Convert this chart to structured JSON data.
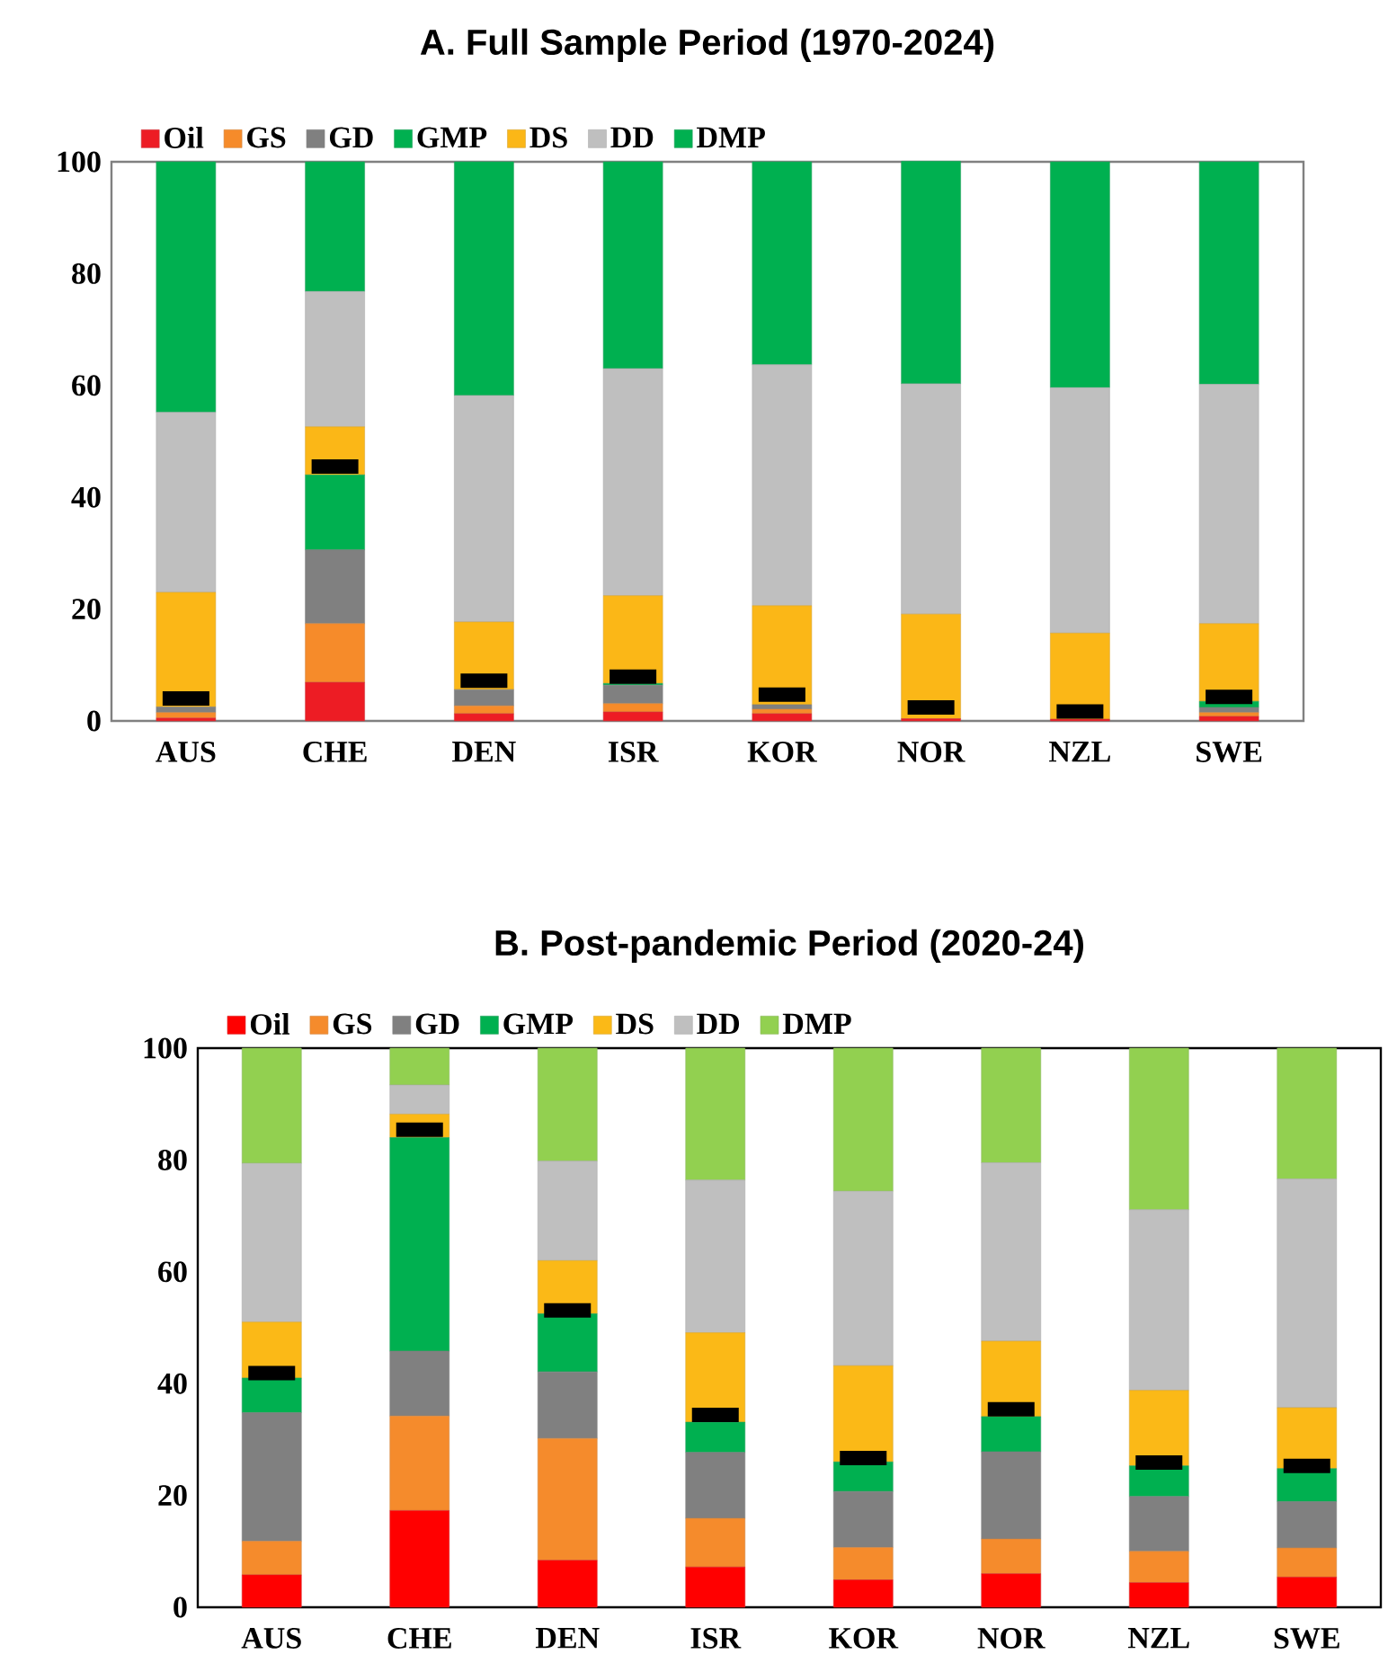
{
  "chart_data": [
    {
      "type": "bar",
      "stacked": true,
      "title": "A.  Full Sample Period (1970-2024)",
      "legend": "top left",
      "categories": [
        "AUS",
        "CHE",
        "DEN",
        "ISR",
        "KOR",
        "NOR",
        "NZL",
        "SWE"
      ],
      "ylim": [
        0,
        100
      ],
      "yticks": [
        0,
        20,
        40,
        60,
        80,
        100
      ],
      "series": [
        {
          "name": "Oil",
          "color": "#ed1c24",
          "values": [
            0.5,
            6.9,
            1.3,
            1.6,
            1.3,
            0.4,
            0.3,
            0.8
          ]
        },
        {
          "name": "GS",
          "color": "#f68b2a",
          "values": [
            1.0,
            10.5,
            1.4,
            1.5,
            0.8,
            null,
            null,
            0.7
          ]
        },
        {
          "name": "GD",
          "color": "#808080",
          "values": [
            1.0,
            13.2,
            2.9,
            3.3,
            0.8,
            null,
            null,
            0.9
          ]
        },
        {
          "name": "GMP",
          "color": "#00b050",
          "values": [
            null,
            13.4,
            null,
            0.3,
            null,
            null,
            null,
            1.1
          ]
        },
        {
          "name": "DS",
          "color": "#fbb717",
          "values": [
            20.5,
            8.6,
            12.1,
            15.7,
            17.7,
            18.7,
            15.4,
            13.9
          ]
        },
        {
          "name": "DD",
          "color": "#bfbfbf",
          "values": [
            32.2,
            24.2,
            40.5,
            40.6,
            43.1,
            41.2,
            43.9,
            42.8
          ]
        },
        {
          "name": "DMP",
          "color": "#00b050",
          "values": [
            44.8,
            23.2,
            41.8,
            37.0,
            36.3,
            39.8,
            40.4,
            39.8
          ]
        },
        {
          "type": "scatter",
          "marker": "square",
          "color": "#000000",
          "x": [
            "AUS",
            "CHE",
            "DEN",
            "ISR",
            "KOR",
            "NOR",
            "NZL",
            "SWE"
          ],
          "values": [
            4.0,
            45.5,
            7.2,
            7.9,
            4.7,
            2.4,
            1.7,
            4.3
          ]
        }
      ]
    },
    {
      "type": "bar",
      "stacked": true,
      "title": "B.  Post-pandemic Period (2020-24)",
      "legend": "top left",
      "categories": [
        "AUS",
        "CHE",
        "DEN",
        "ISR",
        "KOR",
        "NOR",
        "NZL",
        "SWE"
      ],
      "ylim": [
        0,
        100
      ],
      "yticks": [
        0,
        20,
        40,
        60,
        80,
        100
      ],
      "series": [
        {
          "name": "Oil",
          "color": "#ff0000",
          "values": [
            5.8,
            17.3,
            8.4,
            7.2,
            4.9,
            6.0,
            4.4,
            5.4
          ]
        },
        {
          "name": "GS",
          "color": "#f58b2c",
          "values": [
            6.0,
            16.9,
            21.8,
            8.7,
            5.8,
            6.2,
            5.6,
            5.2
          ]
        },
        {
          "name": "GD",
          "color": "#808080",
          "values": [
            23.0,
            11.6,
            11.9,
            11.8,
            10.0,
            15.6,
            9.8,
            8.3
          ]
        },
        {
          "name": "GMP",
          "color": "#00b050",
          "values": [
            6.2,
            38.2,
            10.4,
            5.4,
            5.3,
            6.3,
            5.5,
            5.9
          ]
        },
        {
          "name": "DS",
          "color": "#fbb917",
          "values": [
            10.0,
            4.2,
            9.5,
            16.0,
            17.2,
            13.5,
            13.5,
            10.9
          ]
        },
        {
          "name": "DD",
          "color": "#bfbfbf",
          "values": [
            28.4,
            5.2,
            17.8,
            27.3,
            31.2,
            31.9,
            32.3,
            40.9
          ]
        },
        {
          "name": "DMP",
          "color": "#92d050",
          "values": [
            20.6,
            6.6,
            20.2,
            23.6,
            25.6,
            20.5,
            28.9,
            23.4
          ]
        },
        {
          "type": "scatter",
          "marker": "square",
          "color": "#000000",
          "x": [
            "AUS",
            "CHE",
            "DEN",
            "ISR",
            "KOR",
            "NOR",
            "NZL",
            "SWE"
          ],
          "values": [
            41.9,
            85.4,
            53.1,
            34.4,
            26.7,
            35.4,
            25.9,
            25.3
          ]
        }
      ]
    }
  ]
}
